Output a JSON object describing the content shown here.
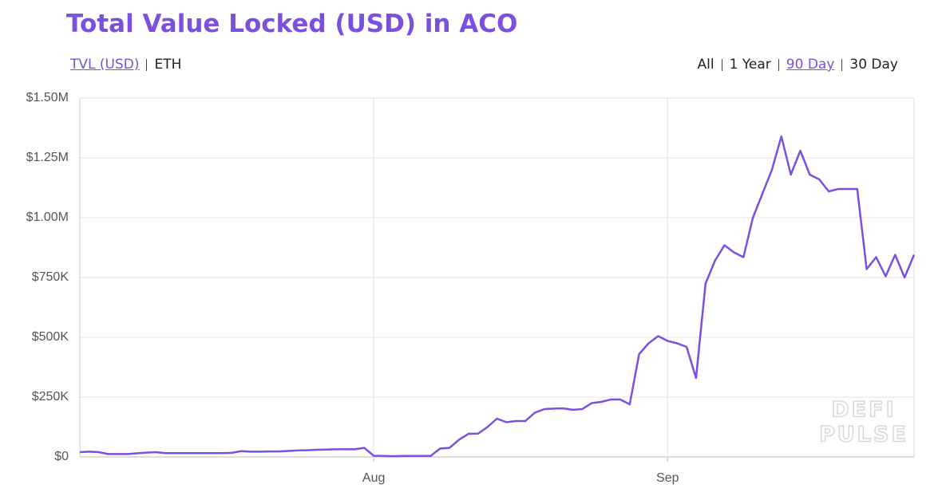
{
  "chart_data": {
    "type": "line",
    "title": "Total Value Locked (USD) in ACO",
    "units": [
      "TVL (USD)",
      "ETH"
    ],
    "active_unit": 0,
    "ranges": [
      "All",
      "1 Year",
      "90 Day",
      "30 Day"
    ],
    "active_range": 2,
    "watermark": [
      "DEFI",
      "PULSE"
    ],
    "categories": [
      null,
      null,
      null,
      null,
      null,
      null,
      null,
      null,
      null,
      null,
      null,
      null,
      null,
      null,
      null,
      null,
      null,
      null,
      null,
      null,
      null,
      null,
      null,
      null,
      null,
      null,
      null,
      null,
      null,
      null,
      null,
      "Aug",
      null,
      null,
      null,
      null,
      null,
      null,
      null,
      null,
      null,
      null,
      null,
      null,
      null,
      null,
      null,
      null,
      null,
      null,
      null,
      null,
      null,
      null,
      null,
      null,
      null,
      null,
      null,
      null,
      null,
      null,
      "Sep",
      null,
      null,
      null,
      null,
      null,
      null,
      null,
      null,
      null,
      null,
      null,
      null,
      null,
      null,
      null,
      null,
      null,
      null,
      null,
      null,
      null,
      null,
      null,
      null,
      null,
      null
    ],
    "series": [
      {
        "name": "TVL (USD)",
        "color": "#7b4fe0",
        "values": [
          20000,
          22000,
          20000,
          12000,
          12000,
          12000,
          15000,
          18000,
          20000,
          16000,
          16000,
          16000,
          16000,
          16000,
          16000,
          16000,
          17000,
          24000,
          22000,
          22000,
          23000,
          23000,
          25000,
          27000,
          28000,
          30000,
          31000,
          32000,
          32000,
          32000,
          38000,
          5000,
          4000,
          3000,
          4000,
          4000,
          4000,
          4000,
          35000,
          38000,
          72000,
          97000,
          97000,
          125000,
          160000,
          145000,
          150000,
          150000,
          185000,
          200000,
          202000,
          203000,
          197000,
          200000,
          225000,
          230000,
          240000,
          240000,
          220000,
          430000,
          475000,
          505000,
          485000,
          475000,
          460000,
          330000,
          725000,
          820000,
          885000,
          855000,
          835000,
          1000000,
          1100000,
          1200000,
          1340000,
          1180000,
          1280000,
          1180000,
          1160000,
          1110000,
          1120000,
          1120000,
          1120000,
          785000,
          835000,
          755000,
          845000,
          750000,
          845000
        ]
      }
    ],
    "ylim": [
      0,
      1500000
    ],
    "yticks": [
      {
        "value": 0,
        "label": "$0"
      },
      {
        "value": 250000,
        "label": "$250K"
      },
      {
        "value": 500000,
        "label": "$500K"
      },
      {
        "value": 750000,
        "label": "$750K"
      },
      {
        "value": 1000000,
        "label": "$1.00M"
      },
      {
        "value": 1250000,
        "label": "$1.25M"
      },
      {
        "value": 1500000,
        "label": "$1.50M"
      }
    ],
    "grid": true
  }
}
